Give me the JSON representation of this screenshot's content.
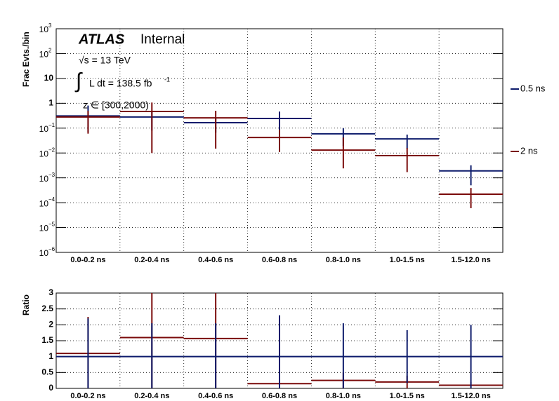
{
  "chart_data": [
    {
      "type": "errorbar",
      "y_label": "Frac Evts./bin",
      "log_y": true,
      "grid": true,
      "atlas_label": "ATLAS",
      "status": "Internal",
      "energy": "√s = 13 TeV",
      "lumi": "L dt = 138.5 fb",
      "lumi_sup": "-1",
      "selection": "z ∈ [300,2000)",
      "legend": "right",
      "categories": [
        "0.0-0.2 ns",
        "0.2-0.4 ns",
        "0.4-0.6 ns",
        "0.6-0.8 ns",
        "0.8-1.0 ns",
        "1.0-1.5 ns",
        "1.5-12.0 ns"
      ],
      "ylim": [
        1e-06,
        1000
      ],
      "yticks": [
        {
          "value": 1e-06,
          "label": "10",
          "sup": "−6"
        },
        {
          "value": 1e-05,
          "label": "10",
          "sup": "−5"
        },
        {
          "value": 0.0001,
          "label": "10",
          "sup": "−4"
        },
        {
          "value": 0.001,
          "label": "10",
          "sup": "−3"
        },
        {
          "value": 0.01,
          "label": "10",
          "sup": "−2"
        },
        {
          "value": 0.1,
          "label": "10",
          "sup": "−1"
        },
        1,
        10,
        {
          "value": 100,
          "label": "10",
          "sup": "2"
        },
        {
          "value": 1000,
          "label": "10",
          "sup": "3"
        }
      ],
      "series": [
        {
          "name": "0.5 ns",
          "color": "#0d1b6b",
          "values": [
            0.31,
            0.28,
            0.166,
            0.245,
            0.059,
            0.037,
            0.0019
          ],
          "err_low": [
            0.24,
            0.2,
            0.1,
            0.21,
            0.04,
            0.022,
            0.0014
          ],
          "err_high": [
            0.5,
            0.2,
            0.1,
            0.22,
            0.04,
            0.018,
            0.0013
          ]
        },
        {
          "name": "2 ns",
          "color": "#7a0a0a",
          "values": [
            0.28,
            0.47,
            0.26,
            0.042,
            0.013,
            0.0078,
            0.00022
          ],
          "err_low": [
            0.22,
            0.46,
            0.245,
            0.031,
            0.0106,
            0.0061,
            0.00016
          ],
          "err_high": [
            0.22,
            0.6,
            0.24,
            0.045,
            0.029,
            0.008,
            0.00017
          ]
        }
      ]
    },
    {
      "type": "errorbar",
      "y_label": "Ratio",
      "grid": true,
      "categories": [
        "0.0-0.2 ns",
        "0.2-0.4 ns",
        "0.4-0.6 ns",
        "0.6-0.8 ns",
        "0.8-1.0 ns",
        "1.0-1.5 ns",
        "1.5-12.0 ns"
      ],
      "ylim": [
        0,
        3
      ],
      "yticks": [
        0,
        0.5,
        1,
        1.5,
        2,
        2.5,
        3
      ],
      "series": [
        {
          "color": "#7a0a0a",
          "values": [
            1.1,
            1.6,
            1.57,
            0.15,
            0.25,
            0.2,
            0.1
          ],
          "errors": [
            1.15,
            1.6,
            1.57,
            0.15,
            0.25,
            0.2,
            0.1
          ]
        },
        {
          "color": "#0d1b6b",
          "values": [
            1,
            1,
            1,
            1,
            1,
            1,
            1
          ],
          "errors": [
            1.2,
            1.05,
            1.05,
            1.3,
            1.05,
            0.83,
            1.0
          ]
        }
      ]
    }
  ]
}
